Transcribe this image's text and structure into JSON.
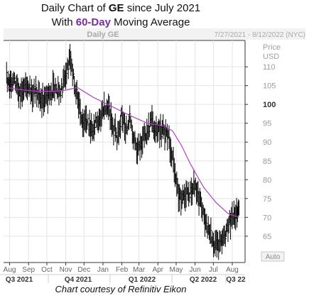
{
  "title": {
    "line1_prefix": "Daily Chart of ",
    "line1_ticker": "GE",
    "line1_suffix": " since July 2021",
    "line2_prefix": "With ",
    "line2_highlight": "60-Day",
    "line2_suffix": " Moving Average"
  },
  "header": {
    "series_label": "Daily GE",
    "date_range": "7/27/2021 - 8/12/2022 (NYC)",
    "price_label": "Price",
    "currency_label": "USD",
    "auto_label": "Auto"
  },
  "credit": "Chart courtesy of Refinitiv Eikon",
  "colors": {
    "price": "#000000",
    "moving_average": "#b23fc4",
    "accent": "#7a2c9e"
  },
  "chart_data": {
    "type": "line",
    "title": "Daily Chart of GE since July 2021 With 60-Day Moving Average",
    "ylabel": "Price USD",
    "ylim": [
      58,
      117
    ],
    "y_ticks": [
      65,
      70,
      75,
      80,
      85,
      90,
      95,
      100,
      105,
      110
    ],
    "x_month_ticks": [
      "Aug",
      "Sep",
      "Oct",
      "Nov",
      "Dec",
      "Jan",
      "Feb",
      "Mar",
      "Apr",
      "May",
      "Jun",
      "Jul",
      "Aug"
    ],
    "x_quarter_ticks": [
      "Q3 2021",
      "Q4 2021",
      "Q1 2022",
      "Q2 2022",
      "Q3 22"
    ],
    "grid": true,
    "series": [
      {
        "name": "Daily GE",
        "style": "hlc-bars",
        "points": [
          [
            "2021-07-27",
            107
          ],
          [
            "2021-08-02",
            105
          ],
          [
            "2021-08-09",
            106
          ],
          [
            "2021-08-16",
            104
          ],
          [
            "2021-08-23",
            103
          ],
          [
            "2021-08-30",
            105
          ],
          [
            "2021-09-06",
            103
          ],
          [
            "2021-09-13",
            104
          ],
          [
            "2021-09-20",
            102
          ],
          [
            "2021-09-27",
            101
          ],
          [
            "2021-10-04",
            103
          ],
          [
            "2021-10-11",
            104
          ],
          [
            "2021-10-18",
            103
          ],
          [
            "2021-10-25",
            104
          ],
          [
            "2021-11-01",
            108
          ],
          [
            "2021-11-08",
            112
          ],
          [
            "2021-11-15",
            106
          ],
          [
            "2021-11-22",
            101
          ],
          [
            "2021-11-29",
            96
          ],
          [
            "2021-12-06",
            95
          ],
          [
            "2021-12-13",
            93
          ],
          [
            "2021-12-20",
            96
          ],
          [
            "2021-12-27",
            95
          ],
          [
            "2022-01-03",
            100
          ],
          [
            "2022-01-10",
            99
          ],
          [
            "2022-01-17",
            94
          ],
          [
            "2022-01-24",
            91
          ],
          [
            "2022-01-31",
            97
          ],
          [
            "2022-02-07",
            94
          ],
          [
            "2022-02-14",
            96
          ],
          [
            "2022-02-21",
            90
          ],
          [
            "2022-02-28",
            88
          ],
          [
            "2022-03-07",
            91
          ],
          [
            "2022-03-14",
            93
          ],
          [
            "2022-03-21",
            95
          ],
          [
            "2022-03-28",
            94
          ],
          [
            "2022-04-04",
            93
          ],
          [
            "2022-04-11",
            93
          ],
          [
            "2022-04-18",
            91
          ],
          [
            "2022-04-25",
            85
          ],
          [
            "2022-05-02",
            78
          ],
          [
            "2022-05-09",
            75
          ],
          [
            "2022-05-16",
            76
          ],
          [
            "2022-05-23",
            77
          ],
          [
            "2022-05-30",
            78
          ],
          [
            "2022-06-06",
            76
          ],
          [
            "2022-06-13",
            73
          ],
          [
            "2022-06-20",
            68
          ],
          [
            "2022-06-27",
            65
          ],
          [
            "2022-07-04",
            63
          ],
          [
            "2022-07-11",
            62
          ],
          [
            "2022-07-18",
            64
          ],
          [
            "2022-07-25",
            68
          ],
          [
            "2022-08-01",
            70
          ],
          [
            "2022-08-08",
            71
          ],
          [
            "2022-08-12",
            73
          ]
        ]
      },
      {
        "name": "60-Day Moving Average",
        "style": "line",
        "points": [
          [
            "2021-07-27",
            104.5
          ],
          [
            "2021-08-15",
            104
          ],
          [
            "2021-09-15",
            103.5
          ],
          [
            "2021-10-15",
            103.5
          ],
          [
            "2021-11-01",
            103.8
          ],
          [
            "2021-11-20",
            104.5
          ],
          [
            "2021-12-15",
            102
          ],
          [
            "2022-01-15",
            99.5
          ],
          [
            "2022-02-15",
            97
          ],
          [
            "2022-03-15",
            95
          ],
          [
            "2022-04-10",
            94.3
          ],
          [
            "2022-04-25",
            93
          ],
          [
            "2022-05-10",
            89
          ],
          [
            "2022-05-25",
            84
          ],
          [
            "2022-06-15",
            78
          ],
          [
            "2022-07-05",
            74
          ],
          [
            "2022-07-25",
            71
          ],
          [
            "2022-08-12",
            70
          ]
        ]
      }
    ]
  }
}
